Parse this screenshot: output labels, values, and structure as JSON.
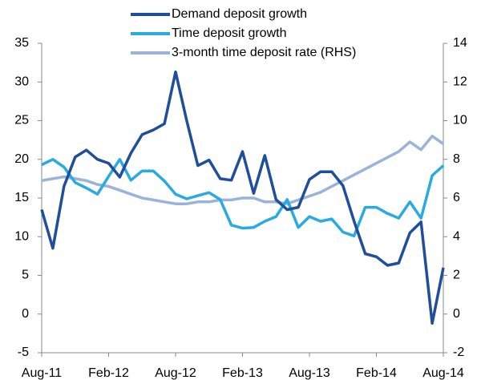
{
  "chart_data": {
    "type": "line",
    "categories": [
      "Aug-11",
      null,
      null,
      null,
      null,
      null,
      "Feb-12",
      null,
      null,
      null,
      null,
      null,
      "Aug-12",
      null,
      null,
      null,
      null,
      null,
      "Feb-13",
      null,
      null,
      null,
      null,
      null,
      "Aug-13",
      null,
      null,
      null,
      null,
      null,
      "Feb-14",
      null,
      null,
      null,
      null,
      null,
      "Aug-14"
    ],
    "series": [
      {
        "name": "Demand deposit growth",
        "color": "#1f4e9a",
        "values": [
          13.5,
          8.5,
          16.5,
          20.3,
          21.2,
          20.0,
          19.5,
          17.7,
          20.8,
          23.2,
          23.8,
          24.6,
          31.3,
          25.0,
          19.2,
          19.9,
          17.5,
          17.3,
          21.0,
          15.6,
          20.5,
          14.8,
          13.5,
          13.8,
          17.4,
          18.4,
          18.4,
          16.6,
          12.0,
          7.8,
          7.4,
          6.3,
          6.6,
          10.5,
          11.9,
          -1.2,
          6.0
        ]
      },
      {
        "name": "Time deposit growth",
        "color": "#29abe2",
        "values": [
          19.3,
          20.0,
          19.0,
          17.0,
          16.3,
          15.5,
          17.8,
          20.0,
          17.3,
          18.5,
          18.5,
          17.2,
          15.5,
          14.9,
          15.3,
          15.7,
          14.8,
          11.5,
          11.1,
          11.2,
          12.0,
          12.6,
          14.8,
          11.2,
          12.6,
          12.0,
          12.3,
          10.6,
          10.1,
          13.8,
          13.8,
          13.0,
          12.4,
          14.5,
          12.4,
          17.9,
          19.2
        ]
      },
      {
        "name": "3-month time deposit rate (RHS)",
        "color": "#9bb3d9",
        "axis": "y2",
        "values": [
          6.9,
          7.0,
          7.1,
          7.0,
          6.9,
          6.7,
          6.6,
          6.4,
          6.2,
          6.0,
          5.9,
          5.8,
          5.7,
          5.7,
          5.8,
          5.8,
          5.9,
          5.9,
          6.0,
          6.0,
          5.8,
          5.8,
          5.7,
          5.9,
          6.1,
          6.3,
          6.6,
          6.9,
          7.2,
          7.5,
          7.8,
          8.1,
          8.4,
          8.9,
          8.5,
          9.2,
          8.8
        ]
      }
    ],
    "ylim": [
      -5,
      35
    ],
    "yticks": [
      -5,
      0,
      5,
      10,
      15,
      20,
      25,
      30,
      35
    ],
    "y2lim": [
      -2,
      14
    ],
    "y2ticks": [
      -2,
      0,
      2,
      4,
      6,
      8,
      10,
      12,
      14
    ]
  }
}
